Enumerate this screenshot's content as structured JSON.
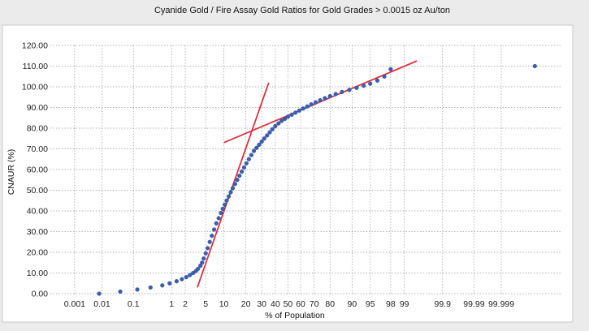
{
  "chart_data": {
    "type": "scatter",
    "title": "Cyanide Gold / Fire Assay Gold Ratios for Gold Grades > 0.0015 oz Au/ton",
    "xlabel": "% of Population",
    "ylabel": "CNAUR (%)",
    "x_scale": "probability",
    "grid": true,
    "legend": "none",
    "ylim": [
      0,
      120
    ],
    "y_ticks": [
      "0.00",
      "10.00",
      "20.00",
      "30.00",
      "40.00",
      "50.00",
      "60.00",
      "70.00",
      "80.00",
      "90.00",
      "100.00",
      "110.00",
      "120.00"
    ],
    "x_ticks": [
      {
        "value": 0.001,
        "label": "0.001"
      },
      {
        "value": 0.01,
        "label": "0.01"
      },
      {
        "value": 0.1,
        "label": "0.1"
      },
      {
        "value": 1,
        "label": "1"
      },
      {
        "value": 2,
        "label": "2"
      },
      {
        "value": 5,
        "label": "5"
      },
      {
        "value": 10,
        "label": "10"
      },
      {
        "value": 20,
        "label": "20"
      },
      {
        "value": 30,
        "label": "30"
      },
      {
        "value": 40,
        "label": "40"
      },
      {
        "value": 50,
        "label": "50"
      },
      {
        "value": 60,
        "label": "60"
      },
      {
        "value": 70,
        "label": "70"
      },
      {
        "value": 80,
        "label": "80"
      },
      {
        "value": 90,
        "label": "90"
      },
      {
        "value": 95,
        "label": "95"
      },
      {
        "value": 98,
        "label": "98"
      },
      {
        "value": 99,
        "label": "99"
      },
      {
        "value": 99.9,
        "label": "99.9"
      },
      {
        "value": 99.99,
        "label": "99.99"
      },
      {
        "value": 99.999,
        "label": "99.999"
      }
    ],
    "colors": {
      "points": "#3a5fb0",
      "trend_lines": "#e03040",
      "grid": "#999999"
    },
    "series": [
      {
        "x": [
          0.008,
          0.04,
          0.13,
          0.3,
          0.6,
          0.9,
          1.3,
          1.7,
          2.1,
          2.5,
          2.9,
          3.3,
          3.6,
          4.0,
          4.3,
          4.6,
          5.0,
          5.4,
          5.9,
          6.4,
          7.0,
          7.6,
          8.3,
          9.0,
          9.6,
          10.3,
          11.0,
          11.8,
          12.6,
          13.5,
          14.5,
          15.5,
          16.6,
          17.8,
          19.0,
          20.3,
          21.7,
          23.2,
          24.8,
          26.5,
          28.2,
          30.0,
          31.8,
          33.8,
          35.8,
          37.8,
          40.0,
          42.5,
          45.0,
          47.5,
          50.0,
          53.0,
          56.0,
          59.0,
          62.0,
          65.0,
          68.0,
          71.0,
          74.0,
          77.0,
          80.0,
          83.0,
          86.0,
          89.0,
          91.5,
          93.5,
          95.0,
          96.3,
          97.3,
          98.0,
          99.99996
        ],
        "y": [
          0,
          1,
          2,
          3,
          4,
          5,
          6,
          7,
          8,
          9,
          10,
          11,
          12,
          13.5,
          15,
          17,
          19.5,
          22,
          25,
          28,
          31,
          34,
          36.5,
          39,
          41,
          43,
          45,
          47,
          49,
          51,
          53,
          55,
          57,
          59,
          61,
          63,
          65,
          67,
          69,
          70.5,
          72,
          73.5,
          75,
          76.5,
          78,
          79.5,
          81,
          82.3,
          83.5,
          84.5,
          85.5,
          86.5,
          87.5,
          88.5,
          89.5,
          90.5,
          91.5,
          92.5,
          93.5,
          94.5,
          95.5,
          96.5,
          97.5,
          98.5,
          99.5,
          100.5,
          101.5,
          103,
          105,
          108.5,
          110
        ]
      }
    ],
    "trend_lines": [
      {
        "x": [
          3.5,
          35
        ],
        "y": [
          3,
          102
        ]
      },
      {
        "x": [
          10,
          99.5
        ],
        "y": [
          73,
          112.5
        ]
      }
    ]
  }
}
